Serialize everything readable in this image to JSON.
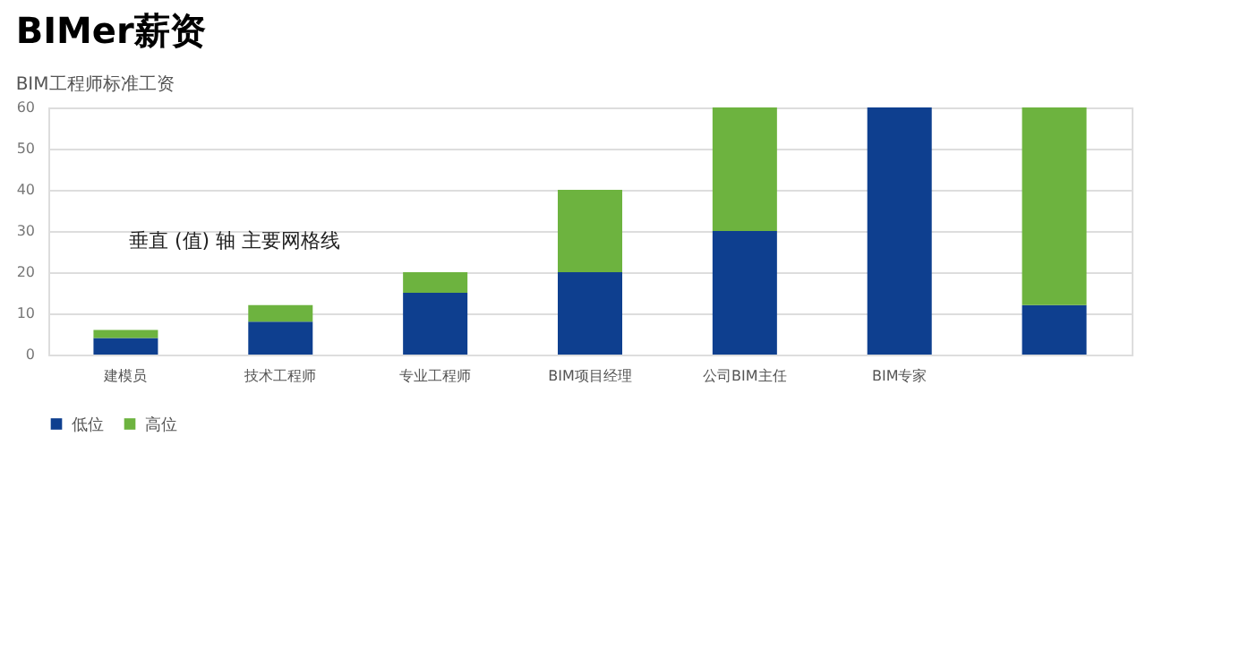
{
  "chart_data": {
    "type": "bar",
    "stacked": true,
    "title": "BIMer薪资",
    "subtitle": "BIM工程师标准工资",
    "categories": [
      "建模员",
      "技术工程师",
      "专业工程师",
      "BIM项目经理",
      "公司BIM主任",
      "BIM专家",
      null
    ],
    "series": [
      {
        "name": "低位",
        "color": "#0e3f8f",
        "values": [
          4,
          8,
          15,
          20,
          30,
          60,
          12
        ]
      },
      {
        "name": "高位",
        "color": "#6db33f",
        "values": [
          2,
          4,
          5,
          20,
          30,
          0,
          48
        ]
      }
    ],
    "ylim": [
      0,
      60
    ],
    "yticks": [
      0,
      10,
      20,
      30,
      40,
      50,
      60
    ],
    "grid": "y",
    "legend": "bottom",
    "annotations": [
      "垂直 (值) 轴 主要网格线"
    ]
  }
}
